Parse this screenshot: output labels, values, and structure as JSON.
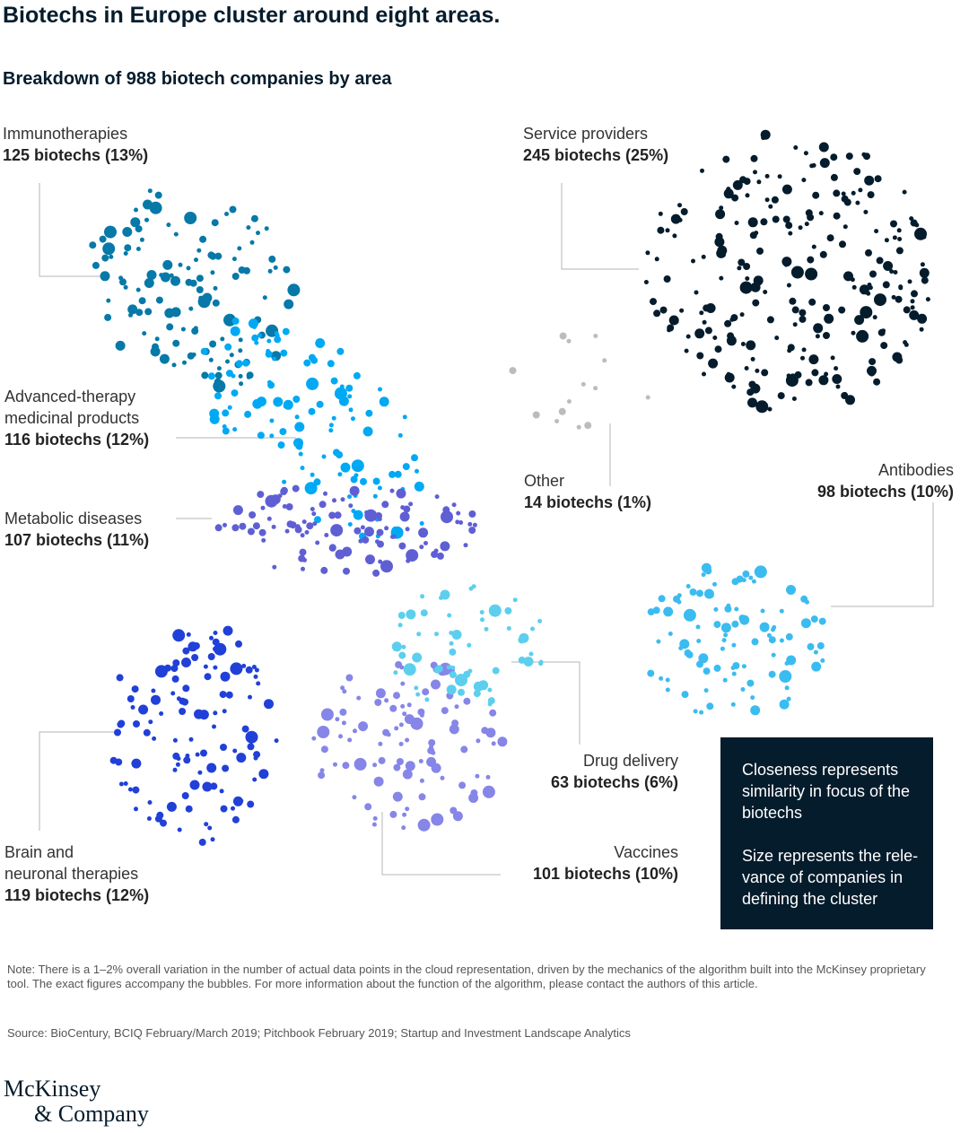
{
  "title": "Biotechs in Europe cluster around eight areas.",
  "subtitle": "Breakdown of 988 biotech companies by area",
  "chart_data": {
    "type": "scatter",
    "title": "Biotechs in Europe cluster around eight areas.",
    "subtitle": "Breakdown of 988 biotech companies by area",
    "total": 988,
    "clusters": [
      {
        "name": "Immunotherapies",
        "count_label": "125 biotechs (13%)",
        "count": 125,
        "share_pct": 13,
        "color": "#0679a8"
      },
      {
        "name": "Advanced-therapy\nmedicinal products",
        "count_label": "116 biotechs (12%)",
        "count": 116,
        "share_pct": 12,
        "color": "#00a9f4"
      },
      {
        "name": "Metabolic diseases",
        "count_label": "107 biotechs (11%)",
        "count": 107,
        "share_pct": 11,
        "color": "#5f5fd4"
      },
      {
        "name": "Brain and\nneuronal therapies",
        "count_label": "119 biotechs (12%)",
        "count": 119,
        "share_pct": 12,
        "color": "#2140d8"
      },
      {
        "name": "Vaccines",
        "count_label": "101 biotechs (10%)",
        "count": 101,
        "share_pct": 10,
        "color": "#8686e8"
      },
      {
        "name": "Drug delivery",
        "count_label": "63 biotechs (6%)",
        "count": 63,
        "share_pct": 6,
        "color": "#5ccfee"
      },
      {
        "name": "Antibodies",
        "count_label": "98 biotechs (10%)",
        "count": 98,
        "share_pct": 10,
        "color": "#3bbcf0"
      },
      {
        "name": "Other",
        "count_label": "14 biotechs (1%)",
        "count": 14,
        "share_pct": 1,
        "color": "#bcbcbc"
      },
      {
        "name": "Service providers",
        "count_label": "245 biotechs (25%)",
        "count": 245,
        "share_pct": 25,
        "color": "#051c2c"
      }
    ]
  },
  "legend": {
    "closeness": "Closeness represents similarity in focus of the biotechs",
    "size": "Size represents the rele-vance of companies in defining the cluster"
  },
  "note": "Note: There is a 1–2% overall variation in the number of actual data points in the cloud representation, driven by the mechanics of the algorithm built into the McKinsey proprietary tool. The exact figures accompany the bubbles. For more information about the function of the algorithm, please contact the authors of this article.",
  "source": "Source: BioCentury, BCIQ February/March 2019; Pitchbook February 2019; Startup and Investment Landscape Analytics",
  "logo": {
    "line1": "McKinsey",
    "line2": "& Company"
  }
}
